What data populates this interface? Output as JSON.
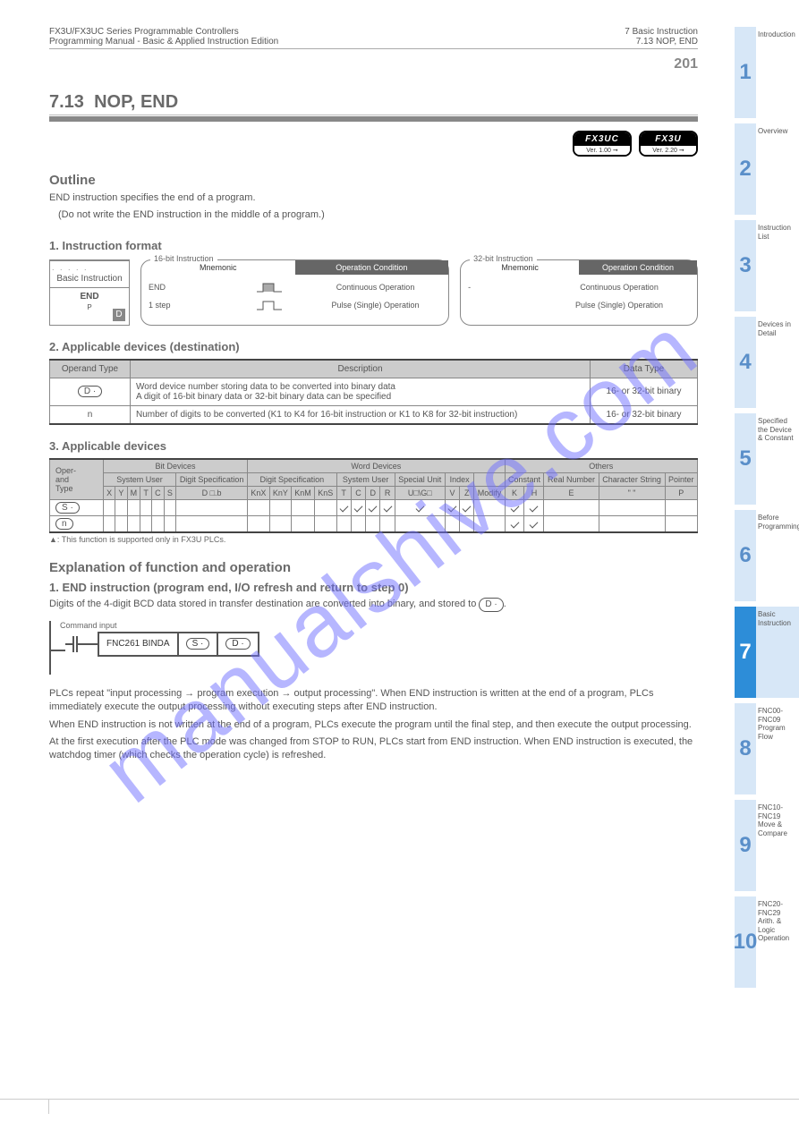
{
  "header": {
    "left1": "FX3U/FX3UC Series Programmable Controllers",
    "left2": "Programming Manual - Basic & Applied Instruction Edition",
    "right1": "7 Basic Instruction",
    "right2": "7.13 NOP, END"
  },
  "pageNum": "201",
  "section": {
    "number": "7.13",
    "title": "NOP, END"
  },
  "badges": [
    {
      "top": "FX3UC",
      "bot": "Ver. 1.00 ➞"
    },
    {
      "top": "FX3U",
      "bot": "Ver. 2.20 ➞"
    }
  ],
  "outline": {
    "head": "Outline",
    "body": "END instruction specifies the end of a program.",
    "sub": "(Do not write the END instruction in the middle of a program.)"
  },
  "format": {
    "head": "1. Instruction format",
    "fnc": {
      "dash": ". . . . .",
      "label1": "Basic Instruction",
      "label2": "END",
      "d": "D"
    },
    "modeLeft": {
      "caption": "Mnemonic",
      "hdr": [
        "",
        "Operation Condition"
      ],
      "rows": [
        {
          "mnem": "END",
          "step": "1 step",
          "cond": "Continuous Operation",
          "wave": "solid"
        },
        {
          "mnem": "",
          "step": "",
          "cond": "Pulse (Single) Operation",
          "wave": "hollow"
        }
      ]
    },
    "modeRight": {
      "caption": "Mnemonic",
      "hdr": [
        "",
        "Operation Condition"
      ],
      "rows": [
        {
          "mnem": "-",
          "step": "-",
          "cond": "Continuous Operation"
        },
        {
          "mnem": "",
          "step": "",
          "cond": "Pulse (Single) Operation"
        }
      ]
    }
  },
  "setData": {
    "head": "2. Applicable devices (destination)",
    "cols": [
      "Operand Type",
      "Description",
      "Data Type"
    ],
    "rows": [
      {
        "op": "D ·",
        "desc": [
          "Word device number storing data to be converted into binary data",
          "A digit of 16-bit binary data or 32-bit binary data can be specified"
        ],
        "dt": "16- or 32-bit binary"
      },
      {
        "op": "n",
        "desc": [
          "Number of digits to be converted (K1 to K4 for 16-bit instruction or K1 to K8 for 32-bit instruction)"
        ],
        "dt": "16- or 32-bit binary"
      }
    ]
  },
  "applicable": {
    "head": "3. Applicable devices",
    "group_headers": [
      "Bit Devices",
      "Word Devices",
      "Others"
    ],
    "sub_headers": [
      "System User",
      "Digit Specification",
      "System User",
      "Special Unit",
      "Index",
      "Constant",
      "Real Number",
      "Character String",
      "Pointer"
    ],
    "cols": [
      "X",
      "Y",
      "M",
      "T",
      "C",
      "S",
      "D □.b",
      "KnX",
      "KnY",
      "KnM",
      "KnS",
      "T",
      "C",
      "D",
      "R",
      "U□\\G□",
      "V",
      "Z",
      "Modify",
      "K",
      "H",
      "E",
      "\" \"",
      "P"
    ],
    "rows": [
      {
        "label": "S ·",
        "marks": [
          0,
          0,
          0,
          0,
          0,
          0,
          0,
          0,
          0,
          0,
          0,
          1,
          1,
          1,
          1,
          1,
          1,
          1,
          0,
          1,
          1,
          0,
          0,
          0
        ]
      },
      {
        "label": "n",
        "marks": [
          0,
          0,
          0,
          0,
          0,
          0,
          0,
          0,
          0,
          0,
          0,
          0,
          0,
          0,
          0,
          0,
          0,
          0,
          0,
          1,
          1,
          0,
          0,
          0
        ]
      }
    ]
  },
  "funcop": {
    "head": "Explanation of function and operation",
    "sub": "1. END instruction (program end, I/O refresh and return to step 0)",
    "body": "Digits of the 4-digit BCD data stored in transfer destination are converted into binary, and stored to",
    "p2a": "PLCs repeat \"input processing → program execution → output processing\". When END instruction is written at the end of a program, PLCs immediately execute the output processing without executing steps after END instruction.",
    "p2b": "When END instruction is not written at the end of a program, PLCs execute the program until the final step, and then execute the output processing.",
    "p2c": "At the first execution after the PLC mode was changed from STOP to RUN, PLCs start from END instruction. When END instruction is executed, the watchdog timer (which checks the operation cycle) is refreshed.",
    "oval": "D ·"
  },
  "ladder": {
    "contact": "Command input",
    "mnem": "FNC261  BINDA",
    "s": "S ·",
    "d": "D ·"
  },
  "tabs": [
    {
      "n": "1",
      "t": "Introduction",
      "active": false
    },
    {
      "n": "2",
      "t": "Overview",
      "active": false
    },
    {
      "n": "3",
      "t": "Instruction List",
      "active": false
    },
    {
      "n": "4",
      "t": "Devices in Detail",
      "active": false
    },
    {
      "n": "5",
      "t": "Specified the Device & Constant",
      "active": false
    },
    {
      "n": "6",
      "t": "Before Programming",
      "active": false
    },
    {
      "n": "7",
      "t": "Basic Instruction",
      "active": true
    },
    {
      "n": "8",
      "t": "FNC00-FNC09 Program Flow",
      "active": false
    },
    {
      "n": "9",
      "t": "FNC10-FNC19 Move & Compare",
      "active": false
    },
    {
      "n": "10",
      "t": "FNC20-FNC29 Arith. & Logic Operation",
      "active": false
    }
  ],
  "footer": {
    "left": "",
    "right": ""
  },
  "tableNote": "▲: This function is supported only in FX3U PLCs.",
  "watermark": "manualshive.com"
}
